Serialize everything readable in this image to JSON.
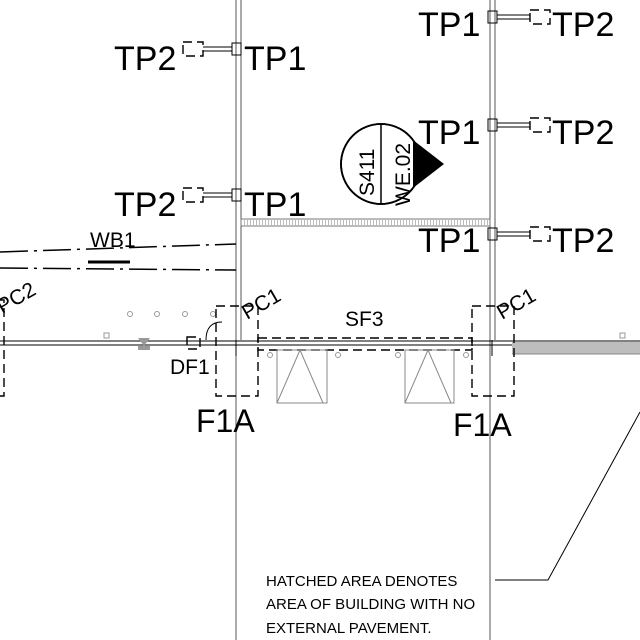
{
  "drawing": {
    "tp_markers": {
      "left_top": {
        "left": "TP2",
        "right": "TP1"
      },
      "left_mid": {
        "left": "TP2",
        "right": "TP1"
      },
      "right_top": {
        "left": "TP1",
        "right": "TP2"
      },
      "right_mid": {
        "left": "TP1",
        "right": "TP2"
      },
      "right_low": {
        "left": "TP1",
        "right": "TP2"
      }
    },
    "section_marker": {
      "sheet": "S411",
      "ref": "WE.02"
    },
    "beam_label": "WB1",
    "column_labels": {
      "left": "PC1",
      "right": "PC1",
      "edge": "PC2"
    },
    "strip_footing_label": "SF3",
    "drainage_label": "DF1",
    "footing_labels": {
      "left": "F1A",
      "right": "F1A"
    },
    "note": {
      "line1": "HATCHED AREA DENOTES",
      "line2": "AREA OF BUILDING WITH NO",
      "line3": "EXTERNAL PAVEMENT."
    }
  }
}
